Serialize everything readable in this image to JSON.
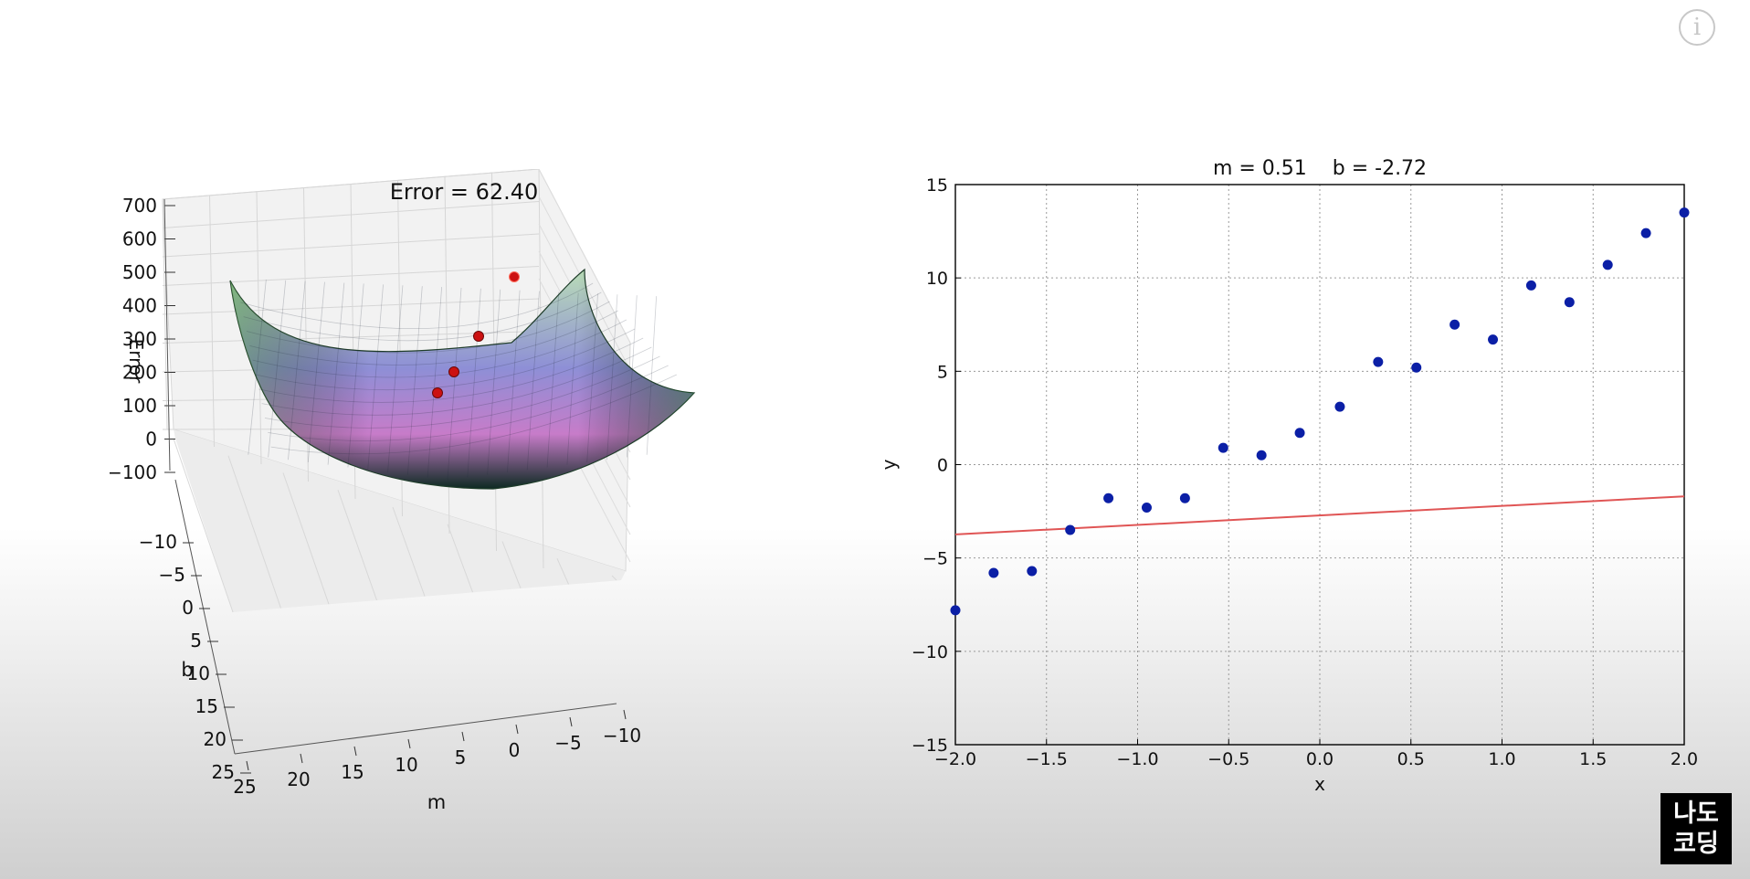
{
  "info_button": {
    "label": "i",
    "icon": "info-icon"
  },
  "logo": {
    "line1": "나도",
    "line2": "코딩"
  },
  "chart_data": [
    {
      "type": "surface",
      "title": "Error = 62.40",
      "xlabel": "m",
      "ylabel": "b",
      "zlabel": "Error",
      "x_ticks": [
        "25",
        "20",
        "15",
        "10",
        "5",
        "0",
        "−5",
        "−10"
      ],
      "y_ticks": [
        "−10",
        "−5",
        "0",
        "5",
        "10",
        "15",
        "20",
        "25"
      ],
      "z_ticks": [
        "700",
        "600",
        "500",
        "400",
        "300",
        "200",
        "100",
        "0",
        "−100"
      ],
      "xlim": [
        -10,
        25
      ],
      "ylim": [
        -10,
        25
      ],
      "zlim": [
        -100,
        700
      ],
      "grid": true,
      "path_point_color": "#cc1111",
      "path_points": [
        {
          "m": -2.5,
          "b": 2,
          "error": 430
        },
        {
          "m": 2,
          "b": 3,
          "error": 210
        },
        {
          "m": 3.5,
          "b": 3,
          "error": 120
        },
        {
          "m": 3.5,
          "b": 0,
          "error": 62.4
        }
      ]
    },
    {
      "type": "scatter",
      "title": "m = 0.51    b = -2.72",
      "xlabel": "x",
      "ylabel": "y",
      "xlim": [
        -2.0,
        2.0
      ],
      "ylim": [
        -15,
        15
      ],
      "x_ticks": [
        -2.0,
        -1.5,
        -1.0,
        -0.5,
        0.0,
        0.5,
        1.0,
        1.5,
        2.0
      ],
      "y_ticks": [
        -15,
        -10,
        -5,
        0,
        5,
        10,
        15
      ],
      "grid": true,
      "point_color": "#0b1fa6",
      "line_color": "#e05555",
      "points": [
        {
          "x": -2.0,
          "y": -7.8
        },
        {
          "x": -1.79,
          "y": -5.8
        },
        {
          "x": -1.58,
          "y": -5.7
        },
        {
          "x": -1.37,
          "y": -3.5
        },
        {
          "x": -1.16,
          "y": -1.8
        },
        {
          "x": -0.95,
          "y": -2.3
        },
        {
          "x": -0.74,
          "y": -1.8
        },
        {
          "x": -0.53,
          "y": 0.9
        },
        {
          "x": -0.32,
          "y": 0.5
        },
        {
          "x": -0.11,
          "y": 1.7
        },
        {
          "x": 0.11,
          "y": 3.1
        },
        {
          "x": 0.32,
          "y": 5.5
        },
        {
          "x": 0.53,
          "y": 5.2
        },
        {
          "x": 0.74,
          "y": 7.5
        },
        {
          "x": 0.95,
          "y": 6.7
        },
        {
          "x": 1.16,
          "y": 9.6
        },
        {
          "x": 1.37,
          "y": 8.7
        },
        {
          "x": 1.58,
          "y": 10.7
        },
        {
          "x": 1.79,
          "y": 12.4
        },
        {
          "x": 2.0,
          "y": 13.5
        }
      ],
      "fit_line": {
        "m": 0.51,
        "b": -2.72
      }
    }
  ]
}
